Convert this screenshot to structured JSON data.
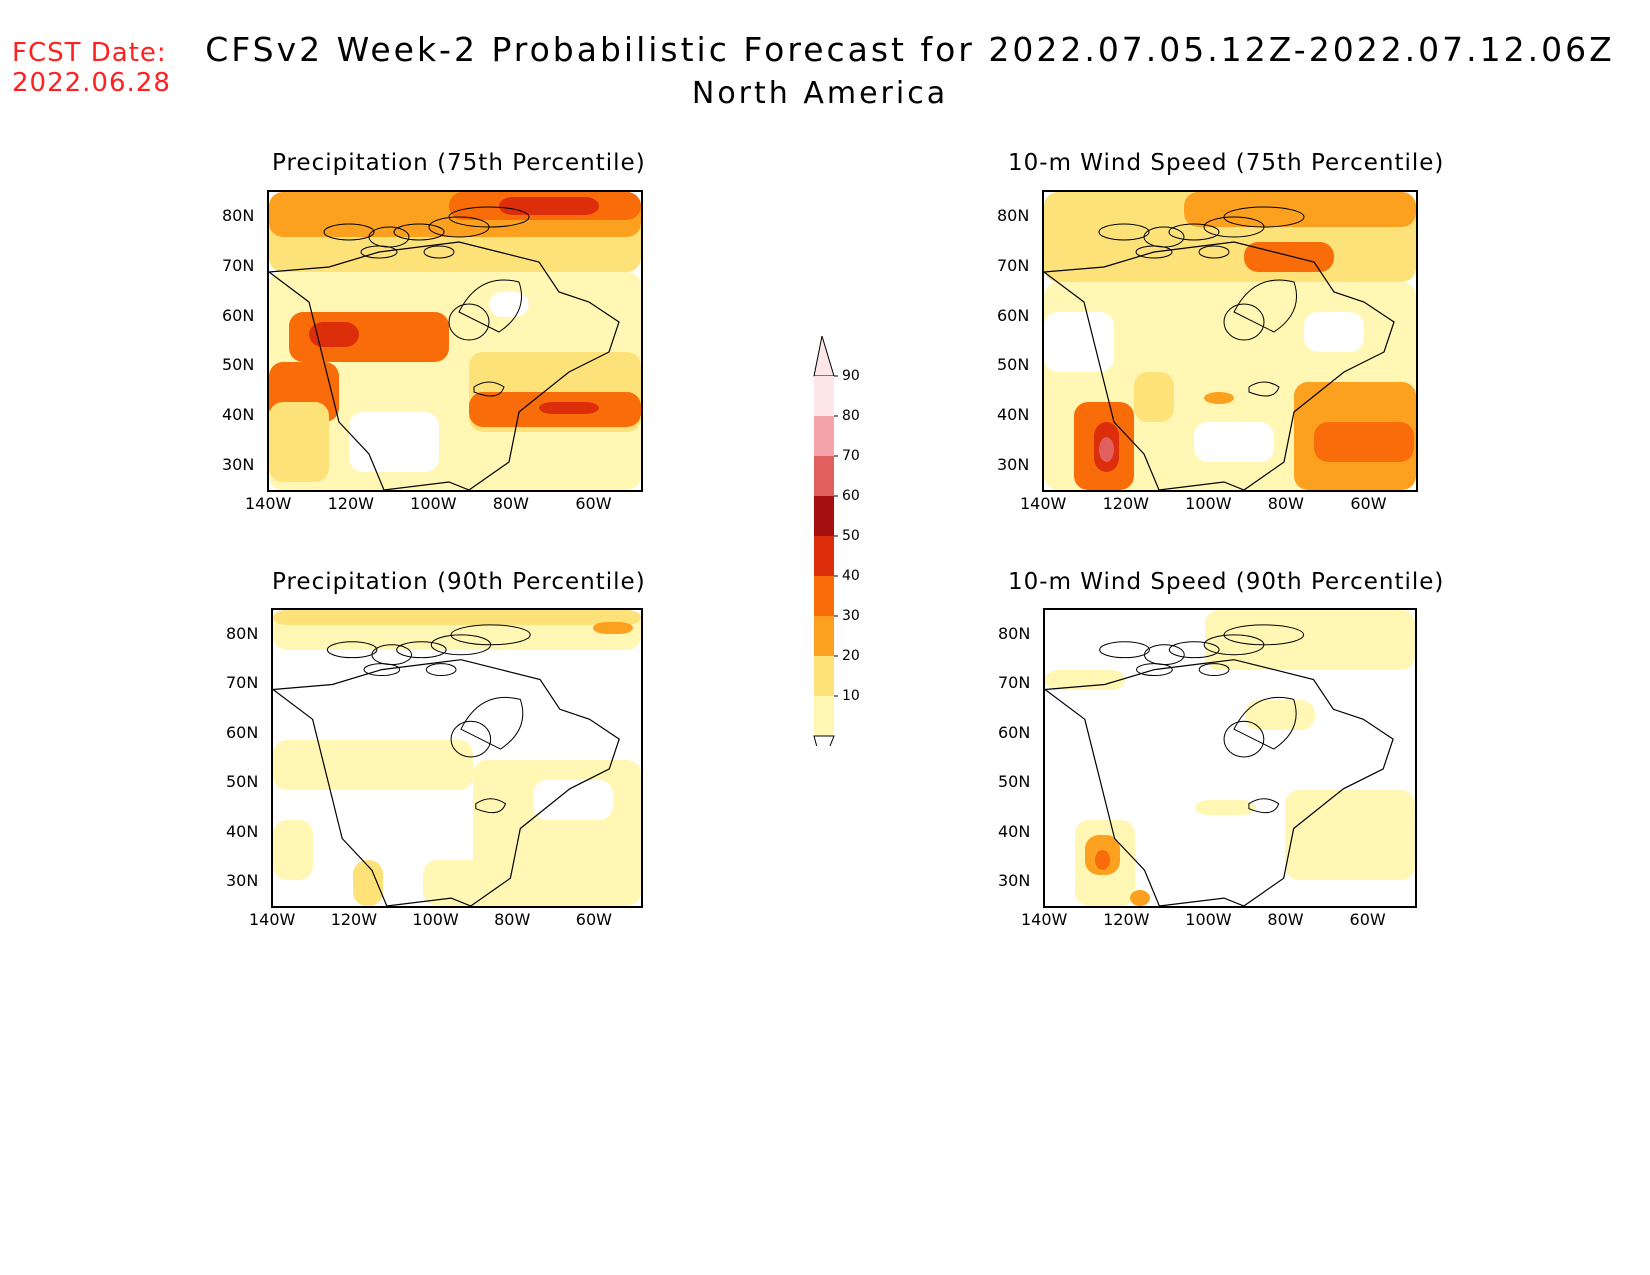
{
  "header": {
    "fcst_label": "FCST Date:",
    "fcst_date": "2022.06.28",
    "title": "CFSv2 Week-2 Probabilistic Forecast for 2022.07.05.12Z-2022.07.12.06Z",
    "subtitle": "North America"
  },
  "axes": {
    "lon_labels": [
      "140W",
      "120W",
      "100W",
      "80W",
      "60W"
    ],
    "lat_labels": [
      "80N",
      "70N",
      "60N",
      "50N",
      "40N",
      "30N"
    ]
  },
  "panels": [
    {
      "title": "Precipitation (75th Percentile)",
      "intensity": "high"
    },
    {
      "title": "10-m Wind Speed (75th Percentile)",
      "intensity": "high"
    },
    {
      "title": "Precipitation (90th Percentile)",
      "intensity": "low"
    },
    {
      "title": "10-m Wind Speed (90th Percentile)",
      "intensity": "low"
    }
  ],
  "colorbar": {
    "levels": [
      "90",
      "80",
      "70",
      "60",
      "50",
      "40",
      "30",
      "20",
      "10"
    ],
    "colors": [
      "#fde6e8",
      "#f4a3aa",
      "#e06060",
      "#a50f0f",
      "#dc2e0a",
      "#f86d0a",
      "#fca020",
      "#fde27a",
      "#fff7b3"
    ]
  }
}
